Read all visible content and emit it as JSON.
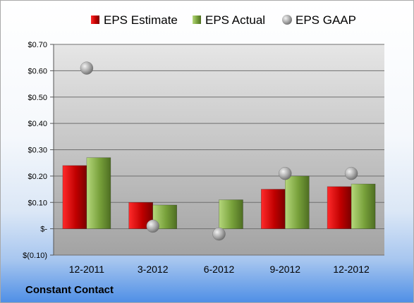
{
  "chart_data": {
    "type": "bar",
    "categories": [
      "12-2011",
      "3-2012",
      "6-2012",
      "9-2012",
      "12-2012"
    ],
    "series": [
      {
        "name": "EPS Estimate",
        "type": "bar",
        "color": "#c00000",
        "values": [
          0.24,
          0.1,
          null,
          0.15,
          0.16
        ]
      },
      {
        "name": "EPS Actual",
        "type": "bar",
        "color": "#77a03a",
        "values": [
          0.27,
          0.09,
          0.11,
          0.2,
          0.17
        ]
      },
      {
        "name": "EPS GAAP",
        "type": "scatter",
        "color": "#a6a6a6",
        "values": [
          0.61,
          0.01,
          -0.02,
          0.21,
          0.21
        ]
      }
    ],
    "y_ticks": [
      {
        "value": 0.7,
        "label": "$0.70"
      },
      {
        "value": 0.6,
        "label": "$0.60"
      },
      {
        "value": 0.5,
        "label": "$0.50"
      },
      {
        "value": 0.4,
        "label": "$0.40"
      },
      {
        "value": 0.3,
        "label": "$0.30"
      },
      {
        "value": 0.2,
        "label": "$0.20"
      },
      {
        "value": 0.1,
        "label": "$0.10"
      },
      {
        "value": 0.0,
        "label": "$-"
      },
      {
        "value": -0.1,
        "label": "$(0.10)"
      }
    ],
    "ylim": [
      -0.1,
      0.7
    ],
    "grid": true,
    "legend_position": "top"
  },
  "footer": {
    "company": "Constant Contact"
  }
}
